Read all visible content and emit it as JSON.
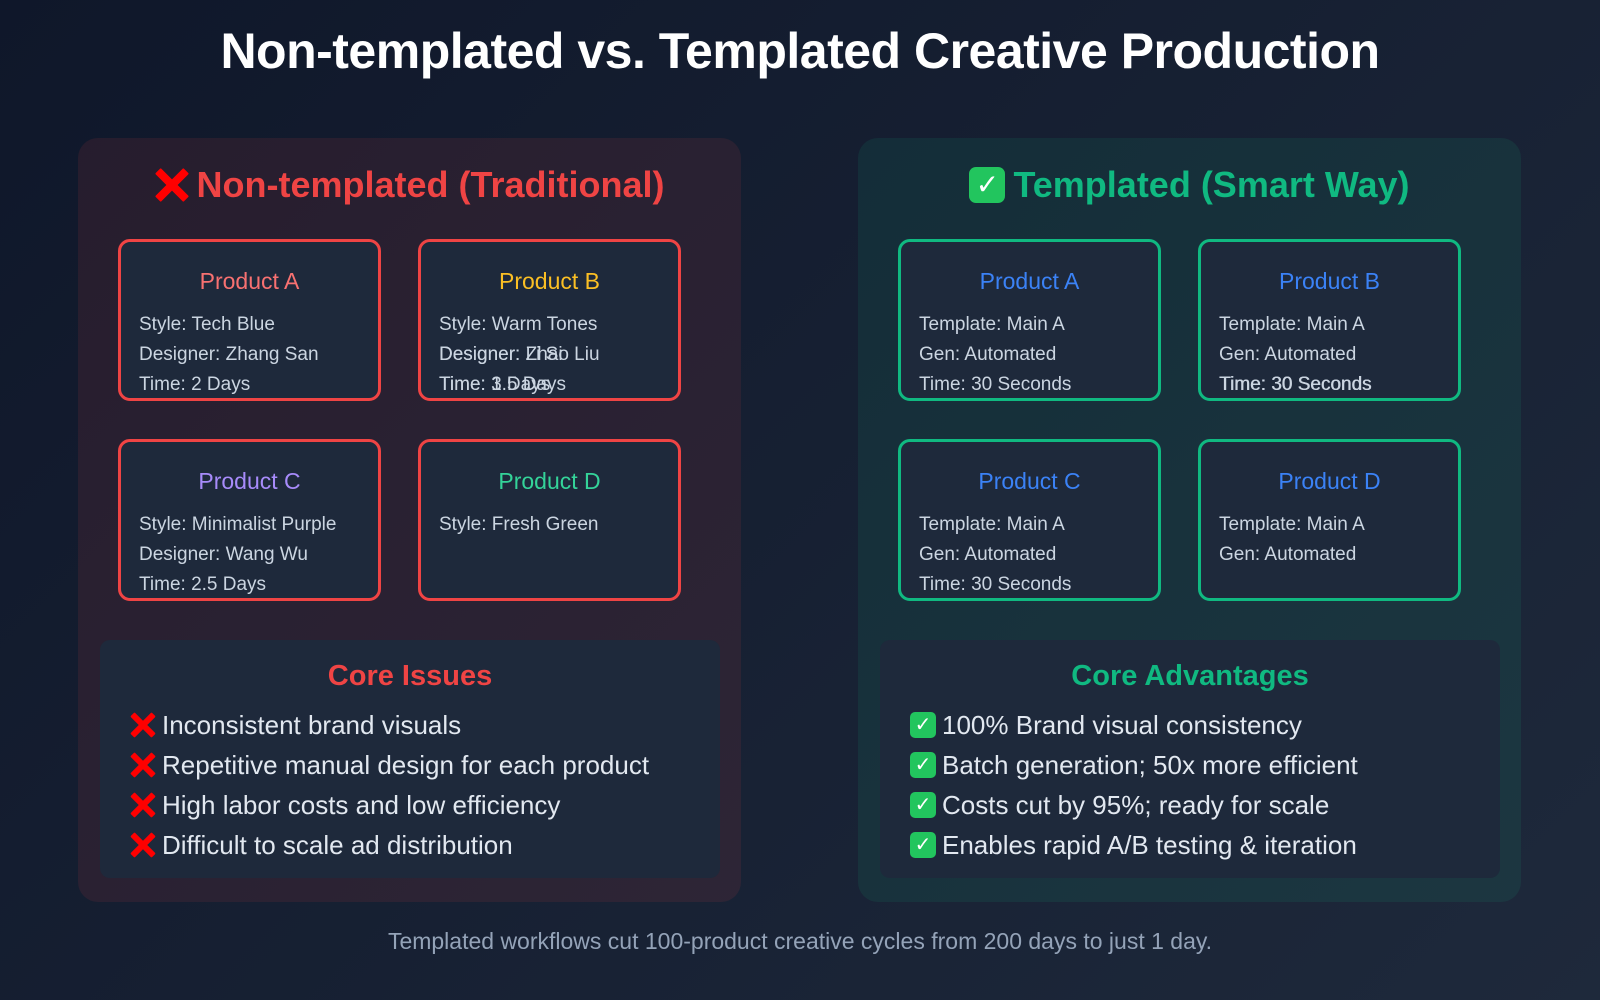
{
  "title": "Non-templated vs. Templated Creative Production",
  "colors": {
    "background_start": "#0f172a",
    "background_end": "#1e293b",
    "negative": "#ef4444",
    "positive": "#10b981",
    "card_bg": "#1e293b",
    "product_blue": "#3b82f6"
  },
  "left_panel": {
    "icon": "cross-mark-icon",
    "heading": "Non-templated (Traditional)",
    "cards": [
      {
        "title": "Product A",
        "title_color": "#f87171",
        "lines": [
          "Style: Tech Blue",
          "Designer: Zhang San",
          "Time: 2 Days"
        ]
      },
      {
        "title": "Product B",
        "title_color": "#fbbf24",
        "lines": [
          "Style: Warm Tones",
          "Designer: Zhao Liu",
          "Time: 3 Days"
        ],
        "overlapping_lines": [
          "",
          "Designer: Li Si",
          "Time: 1.5 Days"
        ]
      },
      {
        "title": "Product C",
        "title_color": "#a78bfa",
        "lines": [
          "Style: Minimalist Purple",
          "Designer: Wang Wu",
          "Time: 2.5 Days"
        ]
      },
      {
        "title": "Product D",
        "title_color": "#34d399",
        "lines": [
          "Style: Fresh Green"
        ]
      }
    ],
    "core": {
      "title": "Core Issues",
      "item_icon": "cross-mark-icon",
      "items": [
        "Inconsistent brand visuals",
        "Repetitive manual design for each product",
        "High labor costs and low efficiency",
        "Difficult to scale ad distribution"
      ]
    }
  },
  "right_panel": {
    "icon": "check-mark-button-icon",
    "heading": "Templated (Smart Way)",
    "cards": [
      {
        "title": "Product A",
        "title_color": "#3b82f6",
        "lines": [
          "Template: Main A",
          "Gen: Automated",
          "Time: 30 Seconds"
        ]
      },
      {
        "title": "Product B",
        "title_color": "#3b82f6",
        "lines": [
          "Template: Main A",
          "Gen: Automated",
          "Time: 30 Seconds"
        ]
      },
      {
        "title": "Product C",
        "title_color": "#3b82f6",
        "lines": [
          "Template: Main A",
          "Gen: Automated",
          "Time: 30 Seconds"
        ]
      },
      {
        "title": "Product D",
        "title_color": "#3b82f6",
        "lines": [
          "Template: Main A",
          "Gen: Automated"
        ]
      }
    ],
    "core": {
      "title": "Core Advantages",
      "item_icon": "check-mark-button-icon",
      "items": [
        "100% Brand visual consistency",
        "Batch generation; 50x more efficient",
        "Costs cut by 95%; ready for scale",
        "Enables rapid A/B testing & iteration"
      ]
    }
  },
  "footer": "Templated workflows cut 100-product creative cycles from 200 days to just 1 day."
}
